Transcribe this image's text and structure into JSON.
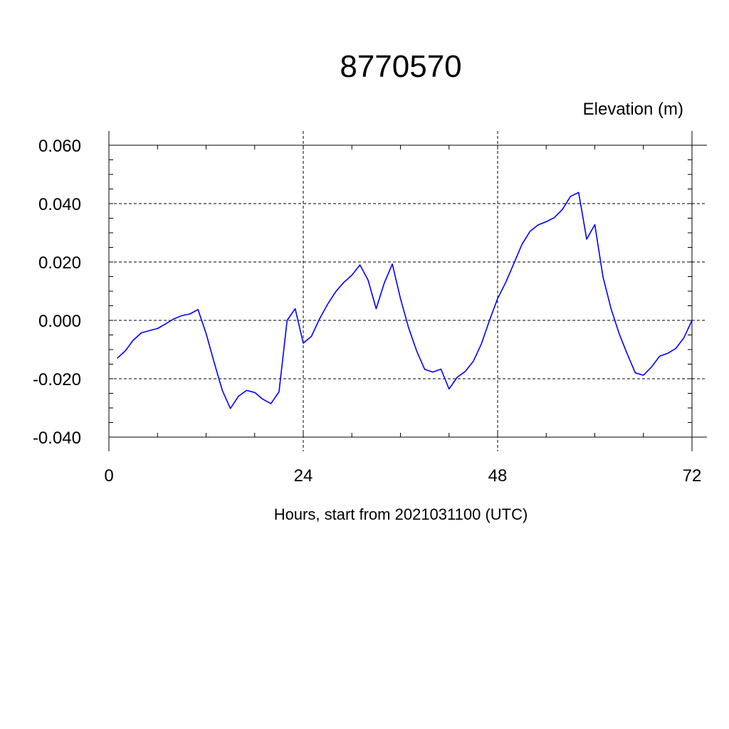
{
  "chart_data": {
    "type": "line",
    "title": "8770570",
    "units_label": "Elevation (m)",
    "xlabel": "Hours, start from 2021031100 (UTC)",
    "ylabel": "",
    "xlim": [
      0,
      72
    ],
    "ylim": [
      -0.04,
      0.06
    ],
    "x_ticks": [
      0,
      24,
      48,
      72
    ],
    "x_tick_labels": [
      "0",
      "24",
      "48",
      "72"
    ],
    "y_ticks": [
      -0.04,
      -0.02,
      0.0,
      0.02,
      0.04,
      0.06
    ],
    "y_tick_labels": [
      "-0.040",
      "-0.020",
      "0.000",
      "0.020",
      "0.040",
      "0.060"
    ],
    "grid": true,
    "series": [
      {
        "color": "#0000ff",
        "x": [
          1,
          2,
          3,
          4,
          5,
          6,
          7,
          8,
          9,
          10,
          11,
          12,
          13,
          14,
          15,
          16,
          17,
          18,
          19,
          20,
          21,
          22,
          23,
          24,
          25,
          26,
          27,
          28,
          29,
          30,
          31,
          32,
          33,
          34,
          35,
          36,
          37,
          38,
          39,
          40,
          41,
          42,
          43,
          44,
          45,
          46,
          47,
          48,
          49,
          50,
          51,
          52,
          53,
          54,
          55,
          56,
          57,
          58,
          59,
          60,
          61,
          62,
          63,
          64,
          65,
          66,
          67,
          68,
          69,
          70,
          71,
          72
        ],
        "y": [
          -0.013,
          -0.0105,
          -0.0068,
          -0.0043,
          -0.0035,
          -0.0028,
          -0.0012,
          0.0005,
          0.0016,
          0.0022,
          0.0037,
          -0.0045,
          -0.0145,
          -0.024,
          -0.0302,
          -0.026,
          -0.024,
          -0.0247,
          -0.027,
          -0.0285,
          -0.0245,
          0.0,
          0.004,
          -0.0078,
          -0.0055,
          0.0005,
          0.0055,
          0.0098,
          0.013,
          0.0155,
          0.019,
          0.0138,
          0.004,
          0.0128,
          0.0193,
          0.0075,
          -0.0025,
          -0.0105,
          -0.0168,
          -0.0177,
          -0.0167,
          -0.0235,
          -0.0195,
          -0.0175,
          -0.014,
          -0.008,
          0.0,
          0.0075,
          0.013,
          0.0195,
          0.026,
          0.0305,
          0.0327,
          0.0338,
          0.0352,
          0.038,
          0.0425,
          0.0438,
          0.0278,
          0.0328,
          0.015,
          0.004,
          -0.0045,
          -0.0115,
          -0.018,
          -0.0188,
          -0.016,
          -0.0123,
          -0.0113,
          -0.0096,
          -0.006,
          0.0
        ]
      }
    ]
  }
}
